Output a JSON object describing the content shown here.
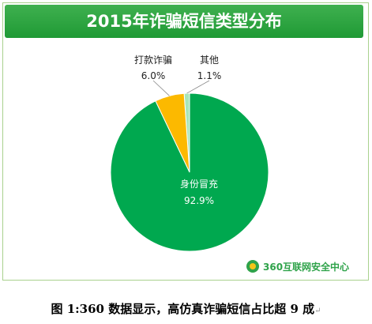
{
  "chart_data": {
    "type": "pie",
    "title": "2015年诈骗短信类型分布",
    "slices": [
      {
        "label": "身份冒充",
        "value": 92.9,
        "value_label": "92.9%",
        "color": "#00a84f"
      },
      {
        "label": "打款诈骗",
        "value": 6.0,
        "value_label": "6.0%",
        "color": "#fcb900"
      },
      {
        "label": "其他",
        "value": 1.1,
        "value_label": "1.1%",
        "color": "#a8e6b8"
      }
    ]
  },
  "logo_text": "360互联网安全中心",
  "caption": "图 1:360 数据显示，高仿真诈骗短信占比超 9 成",
  "caption_mark": "↵"
}
